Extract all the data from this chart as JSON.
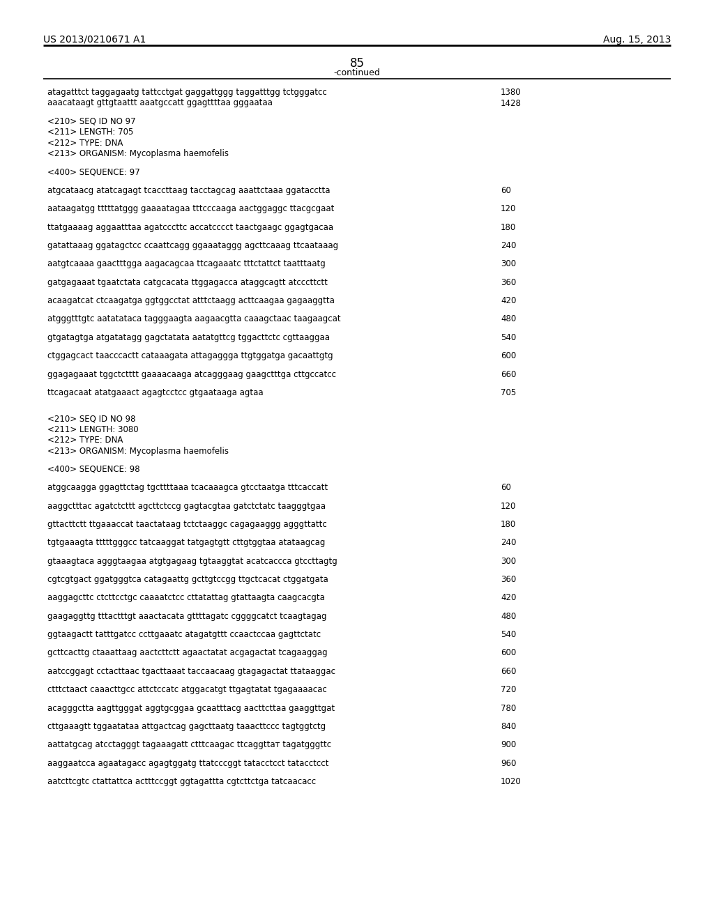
{
  "patent_number": "US 2013/0210671 A1",
  "date": "Aug. 15, 2013",
  "page_number": "85",
  "continued_label": "-continued",
  "background_color": "#ffffff",
  "text_color": "#000000",
  "lines": [
    {
      "text": "atagatttct taggagaatg tattcctgat gaggattggg taggatttgg tctgggatcc",
      "num": "1380"
    },
    {
      "text": "aaacataagt gttgtaattt aaatgccatt ggagttttaa gggaataa",
      "num": "1428"
    },
    {
      "text": "",
      "num": ""
    },
    {
      "text": "<210> SEQ ID NO 97",
      "num": ""
    },
    {
      "text": "<211> LENGTH: 705",
      "num": ""
    },
    {
      "text": "<212> TYPE: DNA",
      "num": ""
    },
    {
      "text": "<213> ORGANISM: Mycoplasma haemofelis",
      "num": ""
    },
    {
      "text": "",
      "num": ""
    },
    {
      "text": "<400> SEQUENCE: 97",
      "num": ""
    },
    {
      "text": "",
      "num": ""
    },
    {
      "text": "atgcataacg atatcagagt tcaccttaag tacctagcag aaattctaaa ggatacctta",
      "num": "60"
    },
    {
      "text": "",
      "num": ""
    },
    {
      "text": "aataagatgg tttttatggg gaaaatagaa tttcccaaga aactggaggc ttacgcgaat",
      "num": "120"
    },
    {
      "text": "",
      "num": ""
    },
    {
      "text": "ttatgaaaag aggaatttaa agatcccttc accatcccct taactgaagc ggagtgacaa",
      "num": "180"
    },
    {
      "text": "",
      "num": ""
    },
    {
      "text": "gatattaaag ggatagctcc ccaattcagg ggaaataggg agcttcaaag ttcaataaag",
      "num": "240"
    },
    {
      "text": "",
      "num": ""
    },
    {
      "text": "aatgtcaaaa gaactttgga aagacagcaa ttcagaaatc tttctattct taatttaatg",
      "num": "300"
    },
    {
      "text": "",
      "num": ""
    },
    {
      "text": "gatgagaaat tgaatctata catgcacata ttggagacca ataggcagtt atcccttctt",
      "num": "360"
    },
    {
      "text": "",
      "num": ""
    },
    {
      "text": "acaagatcat ctcaagatga ggtggcctat atttctaagg acttcaagaa gagaaggtta",
      "num": "420"
    },
    {
      "text": "",
      "num": ""
    },
    {
      "text": "atgggtttgtc aatatataca tagggaagta aagaacgtta caaagctaac taagaagcat",
      "num": "480"
    },
    {
      "text": "",
      "num": ""
    },
    {
      "text": "gtgatagtga atgatatagg gagctatata aatatgttcg tggacttctc cgttaaggaa",
      "num": "540"
    },
    {
      "text": "",
      "num": ""
    },
    {
      "text": "ctggagcact taacccactt cataaagata attagaggga ttgtggatga gacaattgtg",
      "num": "600"
    },
    {
      "text": "",
      "num": ""
    },
    {
      "text": "ggagagaaat tggctctttt gaaaacaaga atcagggaag gaagctttga cttgccatcc",
      "num": "660"
    },
    {
      "text": "",
      "num": ""
    },
    {
      "text": "ttcagacaat atatgaaact agagtcctcc gtgaataaga agtaa",
      "num": "705"
    },
    {
      "text": "",
      "num": ""
    },
    {
      "text": "",
      "num": ""
    },
    {
      "text": "<210> SEQ ID NO 98",
      "num": ""
    },
    {
      "text": "<211> LENGTH: 3080",
      "num": ""
    },
    {
      "text": "<212> TYPE: DNA",
      "num": ""
    },
    {
      "text": "<213> ORGANISM: Mycoplasma haemofelis",
      "num": ""
    },
    {
      "text": "",
      "num": ""
    },
    {
      "text": "<400> SEQUENCE: 98",
      "num": ""
    },
    {
      "text": "",
      "num": ""
    },
    {
      "text": "atggcaagga ggagttctag tgcttttaaa tcacaaagca gtcctaatga tttcaccatt",
      "num": "60"
    },
    {
      "text": "",
      "num": ""
    },
    {
      "text": "aaggctttac agatctcttt agcttctccg gagtacgtaa gatctctatc taagggtgaa",
      "num": "120"
    },
    {
      "text": "",
      "num": ""
    },
    {
      "text": "gttacttctt ttgaaaccat taactataag tctctaaggc cagagaaggg agggttattc",
      "num": "180"
    },
    {
      "text": "",
      "num": ""
    },
    {
      "text": "tgtgaaagta tttttgggcc tatcaaggat tatgagtgtt cttgtggtaa atataagcag",
      "num": "240"
    },
    {
      "text": "",
      "num": ""
    },
    {
      "text": "gtaaagtaca agggtaagaa atgtgagaag tgtaaggtat acatcaccca gtccttagtg",
      "num": "300"
    },
    {
      "text": "",
      "num": ""
    },
    {
      "text": "cgtcgtgact ggatgggtca catagaattg gcttgtccgg ttgctcacat ctggatgata",
      "num": "360"
    },
    {
      "text": "",
      "num": ""
    },
    {
      "text": "aaggagcttc ctcttcctgc caaaatctcc cttatattag gtattaagta caagcacgta",
      "num": "420"
    },
    {
      "text": "",
      "num": ""
    },
    {
      "text": "gaagaggttg tttactttgt aaactacata gttttagatc cggggcatct tcaagtagag",
      "num": "480"
    },
    {
      "text": "",
      "num": ""
    },
    {
      "text": "ggtaagactt tatttgatcc ccttgaaatc atagatgttt ccaactccaa gagttctatc",
      "num": "540"
    },
    {
      "text": "",
      "num": ""
    },
    {
      "text": "gcttcacttg ctaaattaag aactcttctt agaactatat acgagactat tcagaaggag",
      "num": "600"
    },
    {
      "text": "",
      "num": ""
    },
    {
      "text": "aatccggagt cctacttaac tgacttaaat taccaacaag gtagagactat ttataaggac",
      "num": "660"
    },
    {
      "text": "",
      "num": ""
    },
    {
      "text": "ctttctaact caaacttgcc attctccatc atggacatgt ttgagtatat tgagaaaacac",
      "num": "720"
    },
    {
      "text": "",
      "num": ""
    },
    {
      "text": "acagggctta aagttgggat aggtgcggaa gcaatttacg aacttcttaa gaaggttgat",
      "num": "780"
    },
    {
      "text": "",
      "num": ""
    },
    {
      "text": "cttgaaagtt tggaatataa attgactcag gagcttaatg taaacttccc tagtggtctg",
      "num": "840"
    },
    {
      "text": "",
      "num": ""
    },
    {
      "text": "aattatgcag atcctagggt tagaaagatt ctttcaagac ttcaggttат tagatgggttc",
      "num": "900"
    },
    {
      "text": "",
      "num": ""
    },
    {
      "text": "aaggaatcca agaatagacc agagtggatg ttatcccggt tatacctcct tatacctcct",
      "num": "960"
    },
    {
      "text": "",
      "num": ""
    },
    {
      "text": "aatcttcgtc ctattattca actttccggt ggtagattta cgtcttctga tatcaacacc",
      "num": "1020"
    }
  ]
}
